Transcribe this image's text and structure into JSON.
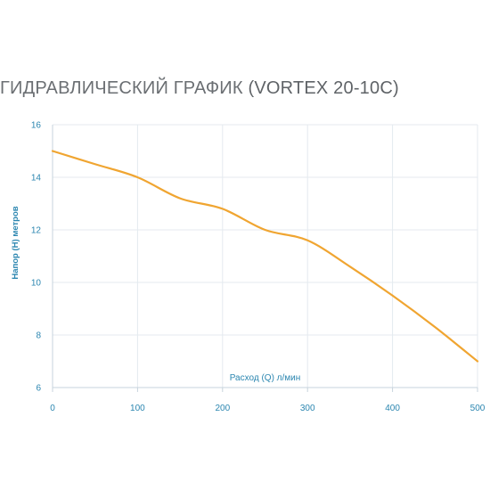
{
  "title": {
    "main": "ГИДРАВЛИЧЕСКИЙ ГРАФИК ",
    "model": "(VORTEX 20-10С)"
  },
  "chart_data": {
    "type": "line",
    "xlabel": "Расход (Q) л/мин",
    "ylabel": "Напор (Н) метров",
    "xlim": [
      0,
      500
    ],
    "ylim": [
      6,
      16
    ],
    "x_ticks": [
      0,
      100,
      200,
      300,
      400,
      500
    ],
    "y_ticks": [
      6,
      8,
      10,
      12,
      14,
      16
    ],
    "grid": true,
    "legend": "none",
    "series": [
      {
        "color": "#f0a531",
        "x": [
          0,
          50,
          100,
          150,
          200,
          250,
          300,
          350,
          400,
          450,
          500
        ],
        "y": [
          15.0,
          14.5,
          14.0,
          13.2,
          12.8,
          12.0,
          11.6,
          10.6,
          9.5,
          8.3,
          7.0
        ]
      }
    ]
  },
  "colors": {
    "grid": "#e4eaef",
    "axis": "#c7d3dc",
    "tick_text": "#2b86b0",
    "title": "#6b6f73"
  }
}
